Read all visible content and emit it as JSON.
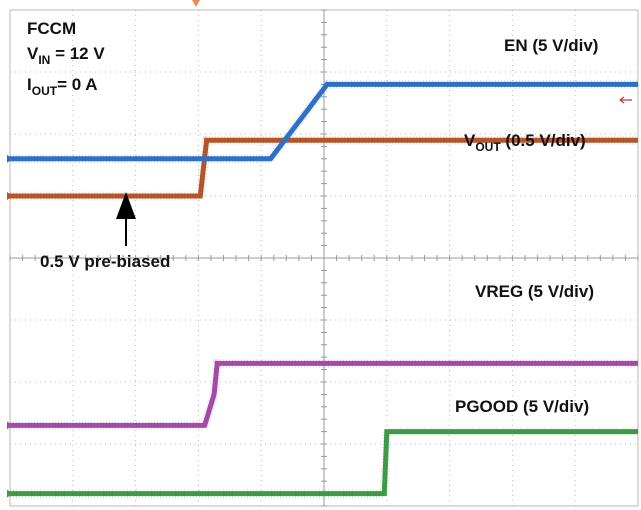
{
  "conditions": {
    "mode": "FCCM",
    "vin": {
      "symbol": "V",
      "sub": "IN",
      "value": " = 12 V"
    },
    "iout": {
      "symbol": "I",
      "sub": "OUT",
      "value": "= 0 A"
    }
  },
  "annotation": {
    "text": "0.5 V pre-biased"
  },
  "chart_data": {
    "type": "line",
    "grid": {
      "h_divisions": 10,
      "v_divisions": 8,
      "visible": true
    },
    "series": [
      {
        "name": "EN (5 V/div)",
        "color": "#b5552b",
        "baseline_div": 3.0,
        "steps": [
          [
            0,
            0.0
          ],
          [
            3.03,
            0.0
          ],
          [
            3.13,
            0.9
          ],
          [
            10,
            0.9
          ]
        ]
      },
      {
        "name": "VOUT (0.5 V/div)",
        "label_parts": {
          "symbol": "V",
          "sub": "OUT",
          "rest": " (0.5 V/div)"
        },
        "color": "#2f6fc7",
        "baseline_div": 2.4,
        "steps": [
          [
            0,
            0.0
          ],
          [
            4.15,
            0.0
          ],
          [
            5.05,
            1.2
          ],
          [
            10,
            1.2
          ]
        ]
      },
      {
        "name": "VREG (5 V/div)",
        "color": "#a44aa8",
        "baseline_div": 6.7,
        "steps": [
          [
            0,
            0.0
          ],
          [
            3.1,
            0.0
          ],
          [
            3.25,
            0.5
          ],
          [
            3.3,
            1.0
          ],
          [
            10,
            1.0
          ]
        ]
      },
      {
        "name": "PGOOD (5 V/div)",
        "color": "#3f9a47",
        "baseline_div": 7.8,
        "steps": [
          [
            0,
            0.0
          ],
          [
            5.96,
            0.0
          ],
          [
            6.0,
            1.0
          ],
          [
            10,
            1.0
          ]
        ]
      }
    ]
  }
}
